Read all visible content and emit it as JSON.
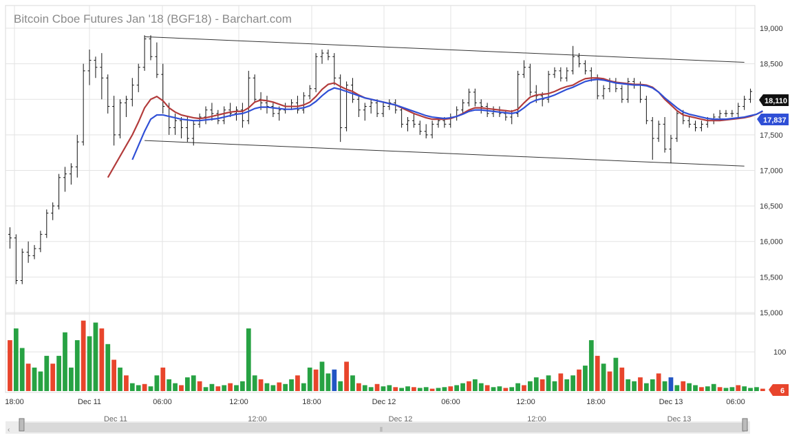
{
  "chart_data": {
    "type": "ohlc",
    "title": "Bitcoin Cboe Futures Jan '18 (BGF18) - Barchart.com",
    "y_ticks": [
      "19,000",
      "18,500",
      "18,000",
      "17,500",
      "17,000",
      "16,500",
      "16,000",
      "15,500",
      "15,000"
    ],
    "y_tick_values": [
      19000,
      18500,
      18000,
      17500,
      17000,
      16500,
      16000,
      15500,
      15000
    ],
    "ylim": [
      15000,
      19300
    ],
    "volume_ticks": [
      "100"
    ],
    "volume_tick_values": [
      100
    ],
    "volume_ylim": [
      0,
      190
    ],
    "x_ticks": [
      "18:00",
      "Dec 11",
      "06:00",
      "12:00",
      "18:00",
      "Dec 12",
      "06:00",
      "12:00",
      "18:00",
      "Dec 13",
      "06:00"
    ],
    "navigator_labels": [
      "Dec 11",
      "12:00",
      "Dec 12",
      "12:00",
      "Dec 13"
    ],
    "last_price": "18,110",
    "ma_value": "17,837",
    "last_volume": "6",
    "colors": {
      "bull": "#27a243",
      "bear": "#e8452c",
      "neutral": "#2255c4",
      "ma_fast": "#b23b3b",
      "ma_slow": "#2f4fd6",
      "badge_price": "#111111",
      "badge_ma": "#2f4fd6",
      "badge_vol": "#e8452c"
    },
    "ohlc": [
      [
        16100,
        16200,
        15900,
        16050
      ],
      [
        16050,
        16100,
        15400,
        15450
      ],
      [
        15450,
        15900,
        15400,
        15850
      ],
      [
        15850,
        16000,
        15700,
        15800
      ],
      [
        15800,
        15950,
        15750,
        15900
      ],
      [
        15900,
        16150,
        15850,
        16100
      ],
      [
        16100,
        16450,
        16050,
        16400
      ],
      [
        16400,
        16550,
        16300,
        16500
      ],
      [
        16500,
        16950,
        16450,
        16900
      ],
      [
        16900,
        17050,
        16700,
        16950
      ],
      [
        16950,
        17100,
        16800,
        17050
      ],
      [
        17050,
        17500,
        16900,
        17400
      ],
      [
        17400,
        18500,
        17350,
        18400
      ],
      [
        18400,
        18700,
        18200,
        18550
      ],
      [
        18550,
        18600,
        18300,
        18450
      ],
      [
        18450,
        18650,
        18000,
        18300
      ],
      [
        18300,
        18350,
        17800,
        17900
      ],
      [
        17900,
        18050,
        17350,
        17500
      ],
      [
        17500,
        18000,
        17450,
        17950
      ],
      [
        17950,
        18050,
        17750,
        18000
      ],
      [
        18000,
        18300,
        17900,
        18200
      ],
      [
        18200,
        18500,
        18100,
        18450
      ],
      [
        18450,
        18900,
        18400,
        18850
      ],
      [
        18850,
        18900,
        18550,
        18600
      ],
      [
        18600,
        18800,
        18300,
        18350
      ],
      [
        18350,
        18500,
        17800,
        17900
      ],
      [
        17900,
        17950,
        17500,
        17600
      ],
      [
        17600,
        17800,
        17500,
        17700
      ],
      [
        17700,
        17750,
        17450,
        17600
      ],
      [
        17600,
        17750,
        17400,
        17450
      ],
      [
        17450,
        17700,
        17350,
        17650
      ],
      [
        17650,
        17800,
        17600,
        17750
      ],
      [
        17750,
        17900,
        17650,
        17850
      ],
      [
        17850,
        17950,
        17700,
        17800
      ],
      [
        17800,
        17850,
        17650,
        17700
      ],
      [
        17700,
        17900,
        17650,
        17850
      ],
      [
        17850,
        17950,
        17750,
        17800
      ],
      [
        17800,
        17900,
        17700,
        17850
      ],
      [
        17850,
        17950,
        17600,
        17700
      ],
      [
        17700,
        18400,
        17650,
        18300
      ],
      [
        18300,
        18350,
        17950,
        18000
      ],
      [
        18000,
        18100,
        17850,
        17950
      ],
      [
        17950,
        18050,
        17800,
        17900
      ],
      [
        17900,
        17950,
        17750,
        17800
      ],
      [
        17800,
        17900,
        17700,
        17850
      ],
      [
        17850,
        17950,
        17800,
        17900
      ],
      [
        17900,
        18000,
        17850,
        17950
      ],
      [
        17950,
        18050,
        17800,
        17850
      ],
      [
        17850,
        18100,
        17800,
        18050
      ],
      [
        18050,
        18200,
        18000,
        18150
      ],
      [
        18150,
        18650,
        18100,
        18600
      ],
      [
        18600,
        18700,
        18500,
        18650
      ],
      [
        18650,
        18700,
        18550,
        18600
      ],
      [
        18600,
        18650,
        18200,
        18300
      ],
      [
        18300,
        18350,
        17400,
        17600
      ],
      [
        17600,
        18250,
        17550,
        18200
      ],
      [
        18200,
        18300,
        17950,
        18000
      ],
      [
        18000,
        18050,
        17750,
        17850
      ],
      [
        17850,
        17950,
        17700,
        17900
      ],
      [
        17900,
        18000,
        17800,
        17950
      ],
      [
        17950,
        18000,
        17750,
        17800
      ],
      [
        17800,
        17950,
        17750,
        17900
      ],
      [
        17900,
        18000,
        17850,
        17950
      ],
      [
        17950,
        18000,
        17800,
        17850
      ],
      [
        17850,
        17900,
        17600,
        17650
      ],
      [
        17650,
        17750,
        17550,
        17700
      ],
      [
        17700,
        17800,
        17600,
        17650
      ],
      [
        17650,
        17700,
        17500,
        17550
      ],
      [
        17550,
        17650,
        17450,
        17500
      ],
      [
        17500,
        17700,
        17450,
        17650
      ],
      [
        17650,
        17750,
        17600,
        17700
      ],
      [
        17700,
        17750,
        17600,
        17650
      ],
      [
        17650,
        17800,
        17600,
        17750
      ],
      [
        17750,
        17900,
        17700,
        17850
      ],
      [
        17850,
        18000,
        17800,
        17950
      ],
      [
        17950,
        18150,
        17900,
        18100
      ],
      [
        18100,
        18150,
        17900,
        17950
      ],
      [
        17950,
        18000,
        17800,
        17900
      ],
      [
        17900,
        17950,
        17750,
        17800
      ],
      [
        17800,
        17900,
        17750,
        17850
      ],
      [
        17850,
        17900,
        17750,
        17800
      ],
      [
        17800,
        17850,
        17700,
        17750
      ],
      [
        17750,
        17850,
        17650,
        17800
      ],
      [
        17800,
        18400,
        17750,
        18350
      ],
      [
        18350,
        18550,
        18300,
        18450
      ],
      [
        18450,
        18500,
        18050,
        18100
      ],
      [
        18100,
        18200,
        17950,
        18050
      ],
      [
        18050,
        18100,
        17900,
        18000
      ],
      [
        18000,
        18400,
        17950,
        18350
      ],
      [
        18350,
        18450,
        18300,
        18400
      ],
      [
        18400,
        18450,
        18250,
        18300
      ],
      [
        18300,
        18450,
        18250,
        18400
      ],
      [
        18400,
        18750,
        18350,
        18600
      ],
      [
        18600,
        18650,
        18450,
        18500
      ],
      [
        18500,
        18550,
        18350,
        18400
      ],
      [
        18400,
        18450,
        18250,
        18300
      ],
      [
        18300,
        18350,
        18000,
        18050
      ],
      [
        18050,
        18200,
        18000,
        18150
      ],
      [
        18150,
        18300,
        18100,
        18250
      ],
      [
        18250,
        18300,
        18100,
        18150
      ],
      [
        18150,
        18200,
        17950,
        18000
      ],
      [
        18000,
        18300,
        17950,
        18250
      ],
      [
        18250,
        18300,
        18150,
        18200
      ],
      [
        18200,
        18250,
        17950,
        18000
      ],
      [
        18000,
        18050,
        17650,
        17700
      ],
      [
        17700,
        17750,
        17150,
        17450
      ],
      [
        17450,
        17700,
        17400,
        17650
      ],
      [
        17650,
        17750,
        17250,
        17300
      ],
      [
        17300,
        17500,
        17100,
        17450
      ],
      [
        17450,
        17850,
        17400,
        17800
      ],
      [
        17800,
        17850,
        17650,
        17700
      ],
      [
        17700,
        17750,
        17600,
        17650
      ],
      [
        17650,
        17700,
        17550,
        17600
      ],
      [
        17600,
        17700,
        17550,
        17650
      ],
      [
        17650,
        17750,
        17600,
        17700
      ],
      [
        17700,
        17800,
        17650,
        17750
      ],
      [
        17750,
        17850,
        17700,
        17800
      ],
      [
        17800,
        17850,
        17750,
        17800
      ],
      [
        17800,
        17850,
        17750,
        17800
      ],
      [
        17800,
        17950,
        17750,
        17900
      ],
      [
        17900,
        18050,
        17850,
        18000
      ],
      [
        18000,
        18150,
        17950,
        18110
      ]
    ],
    "ma_fast": [
      null,
      null,
      null,
      null,
      null,
      null,
      null,
      null,
      null,
      null,
      null,
      null,
      null,
      null,
      null,
      null,
      16900,
      17050,
      17200,
      17350,
      17500,
      17680,
      17880,
      18000,
      18040,
      17980,
      17880,
      17820,
      17780,
      17760,
      17740,
      17730,
      17740,
      17760,
      17780,
      17800,
      17820,
      17830,
      17830,
      17880,
      17960,
      17990,
      17980,
      17960,
      17930,
      17900,
      17900,
      17900,
      17920,
      17960,
      18040,
      18140,
      18210,
      18230,
      18180,
      18140,
      18110,
      18060,
      18020,
      18000,
      17980,
      17960,
      17940,
      17920,
      17880,
      17840,
      17800,
      17770,
      17740,
      17720,
      17720,
      17720,
      17730,
      17760,
      17800,
      17850,
      17880,
      17880,
      17870,
      17860,
      17850,
      17840,
      17830,
      17860,
      17950,
      18030,
      18060,
      18070,
      18080,
      18110,
      18150,
      18180,
      18200,
      18250,
      18290,
      18300,
      18300,
      18290,
      18260,
      18240,
      18230,
      18220,
      18210,
      18210,
      18200,
      18170,
      18100,
      18000,
      17920,
      17840,
      17780,
      17760,
      17740,
      17720,
      17700,
      17700,
      17700,
      17710,
      17720,
      17730,
      17740,
      17760,
      17790,
      17830
    ],
    "ma_slow": [
      null,
      null,
      null,
      null,
      null,
      null,
      null,
      null,
      null,
      null,
      null,
      null,
      null,
      null,
      null,
      null,
      null,
      null,
      null,
      null,
      17150,
      17350,
      17550,
      17720,
      17780,
      17780,
      17760,
      17740,
      17720,
      17710,
      17700,
      17700,
      17710,
      17720,
      17730,
      17750,
      17770,
      17790,
      17800,
      17830,
      17870,
      17890,
      17890,
      17880,
      17870,
      17860,
      17860,
      17870,
      17880,
      17910,
      17970,
      18050,
      18120,
      18160,
      18140,
      18110,
      18080,
      18050,
      18020,
      18000,
      17980,
      17960,
      17940,
      17920,
      17890,
      17860,
      17830,
      17800,
      17770,
      17750,
      17740,
      17730,
      17740,
      17760,
      17790,
      17830,
      17850,
      17850,
      17840,
      17830,
      17820,
      17810,
      17800,
      17820,
      17880,
      17950,
      17990,
      18010,
      18030,
      18060,
      18100,
      18140,
      18170,
      18210,
      18250,
      18270,
      18280,
      18270,
      18250,
      18230,
      18220,
      18210,
      18200,
      18200,
      18190,
      18160,
      18100,
      18020,
      17950,
      17880,
      17820,
      17790,
      17770,
      17750,
      17730,
      17720,
      17720,
      17720,
      17730,
      17740,
      17750,
      17770,
      17790,
      17837
    ],
    "volume": [
      [
        130,
        "bear"
      ],
      [
        160,
        "bull"
      ],
      [
        110,
        "bull"
      ],
      [
        70,
        "bear"
      ],
      [
        60,
        "bull"
      ],
      [
        50,
        "bull"
      ],
      [
        90,
        "bull"
      ],
      [
        70,
        "bear"
      ],
      [
        90,
        "bull"
      ],
      [
        150,
        "bull"
      ],
      [
        60,
        "bull"
      ],
      [
        130,
        "bull"
      ],
      [
        180,
        "bear"
      ],
      [
        140,
        "bull"
      ],
      [
        175,
        "bull"
      ],
      [
        160,
        "bear"
      ],
      [
        120,
        "bull"
      ],
      [
        80,
        "bear"
      ],
      [
        60,
        "bull"
      ],
      [
        40,
        "bear"
      ],
      [
        20,
        "bull"
      ],
      [
        15,
        "bull"
      ],
      [
        18,
        "bear"
      ],
      [
        12,
        "bull"
      ],
      [
        40,
        "bull"
      ],
      [
        60,
        "bear"
      ],
      [
        30,
        "bull"
      ],
      [
        20,
        "bull"
      ],
      [
        15,
        "bear"
      ],
      [
        35,
        "bull"
      ],
      [
        40,
        "bull"
      ],
      [
        25,
        "bear"
      ],
      [
        10,
        "bull"
      ],
      [
        18,
        "bull"
      ],
      [
        12,
        "bear"
      ],
      [
        15,
        "bull"
      ],
      [
        20,
        "bear"
      ],
      [
        15,
        "bull"
      ],
      [
        25,
        "bull"
      ],
      [
        160,
        "bull"
      ],
      [
        40,
        "bull"
      ],
      [
        30,
        "bear"
      ],
      [
        20,
        "bull"
      ],
      [
        15,
        "bull"
      ],
      [
        22,
        "bear"
      ],
      [
        18,
        "bull"
      ],
      [
        30,
        "bull"
      ],
      [
        40,
        "bear"
      ],
      [
        20,
        "bull"
      ],
      [
        60,
        "bull"
      ],
      [
        55,
        "bear"
      ],
      [
        75,
        "bull"
      ],
      [
        45,
        "bull"
      ],
      [
        55,
        "neutral"
      ],
      [
        25,
        "bull"
      ],
      [
        75,
        "bear"
      ],
      [
        40,
        "bull"
      ],
      [
        20,
        "bear"
      ],
      [
        15,
        "bull"
      ],
      [
        10,
        "bull"
      ],
      [
        18,
        "bear"
      ],
      [
        12,
        "bull"
      ],
      [
        15,
        "bull"
      ],
      [
        10,
        "bear"
      ],
      [
        8,
        "bull"
      ],
      [
        12,
        "bull"
      ],
      [
        10,
        "bear"
      ],
      [
        8,
        "bull"
      ],
      [
        10,
        "bull"
      ],
      [
        6,
        "bear"
      ],
      [
        8,
        "bull"
      ],
      [
        10,
        "bull"
      ],
      [
        12,
        "bear"
      ],
      [
        15,
        "bull"
      ],
      [
        20,
        "bull"
      ],
      [
        25,
        "bear"
      ],
      [
        30,
        "bull"
      ],
      [
        20,
        "bull"
      ],
      [
        15,
        "bear"
      ],
      [
        10,
        "bull"
      ],
      [
        12,
        "bull"
      ],
      [
        8,
        "bear"
      ],
      [
        10,
        "bull"
      ],
      [
        20,
        "bull"
      ],
      [
        15,
        "bear"
      ],
      [
        25,
        "bull"
      ],
      [
        35,
        "bull"
      ],
      [
        30,
        "bear"
      ],
      [
        40,
        "bull"
      ],
      [
        25,
        "bull"
      ],
      [
        45,
        "bear"
      ],
      [
        30,
        "bull"
      ],
      [
        40,
        "bull"
      ],
      [
        55,
        "bear"
      ],
      [
        65,
        "bull"
      ],
      [
        130,
        "bull"
      ],
      [
        90,
        "bear"
      ],
      [
        70,
        "bull"
      ],
      [
        50,
        "bear"
      ],
      [
        85,
        "bull"
      ],
      [
        60,
        "bear"
      ],
      [
        30,
        "bull"
      ],
      [
        25,
        "bull"
      ],
      [
        35,
        "bear"
      ],
      [
        20,
        "bull"
      ],
      [
        30,
        "bull"
      ],
      [
        45,
        "bear"
      ],
      [
        25,
        "bull"
      ],
      [
        35,
        "neutral"
      ],
      [
        15,
        "bull"
      ],
      [
        25,
        "bear"
      ],
      [
        20,
        "bull"
      ],
      [
        15,
        "bull"
      ],
      [
        10,
        "bear"
      ],
      [
        12,
        "bull"
      ],
      [
        18,
        "bull"
      ],
      [
        10,
        "bear"
      ],
      [
        8,
        "bull"
      ],
      [
        10,
        "bull"
      ],
      [
        15,
        "bear"
      ],
      [
        12,
        "bull"
      ],
      [
        8,
        "bull"
      ],
      [
        10,
        "bull"
      ],
      [
        6,
        "bear"
      ]
    ],
    "trendline_upper": [
      [
        22,
        18880
      ],
      [
        120,
        18520
      ]
    ],
    "trendline_lower": [
      [
        22,
        17420
      ],
      [
        120,
        17060
      ]
    ]
  }
}
